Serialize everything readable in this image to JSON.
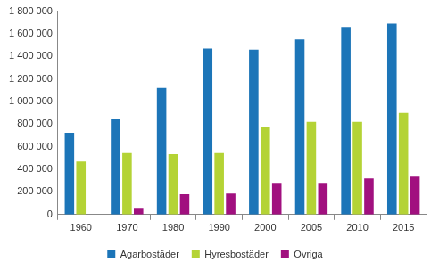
{
  "chart_data": {
    "type": "bar",
    "categories": [
      "1960",
      "1970",
      "1980",
      "1990",
      "2000",
      "2005",
      "2010",
      "2015"
    ],
    "series": [
      {
        "name": "Ägarbostäder",
        "color": "#1c75b8",
        "values": [
          725000,
          850000,
          1120000,
          1470000,
          1460000,
          1550000,
          1660000,
          1690000
        ]
      },
      {
        "name": "Hyresbostäder",
        "color": "#b4d335",
        "values": [
          470000,
          545000,
          535000,
          545000,
          775000,
          820000,
          820000,
          900000
        ]
      },
      {
        "name": "Övriga",
        "color": "#a1107f",
        "values": [
          null,
          60000,
          180000,
          185000,
          280000,
          280000,
          320000,
          335000
        ]
      }
    ],
    "ylim": [
      0,
      1800000
    ],
    "yticks": [
      0,
      {
        "value": 200000,
        "label": "200 000"
      },
      {
        "value": 400000,
        "label": "400 000"
      },
      {
        "value": 600000,
        "label": "600 000"
      },
      {
        "value": 800000,
        "label": "800 000"
      },
      {
        "value": 1000000,
        "label": "1 000 000"
      },
      {
        "value": 1200000,
        "label": "1 200 000"
      },
      {
        "value": 1400000,
        "label": "1 400 000"
      },
      {
        "value": 1600000,
        "label": "1 600 000"
      },
      {
        "value": 1800000,
        "label": "1 800 000"
      }
    ],
    "grid": false,
    "legend": "bottom"
  }
}
